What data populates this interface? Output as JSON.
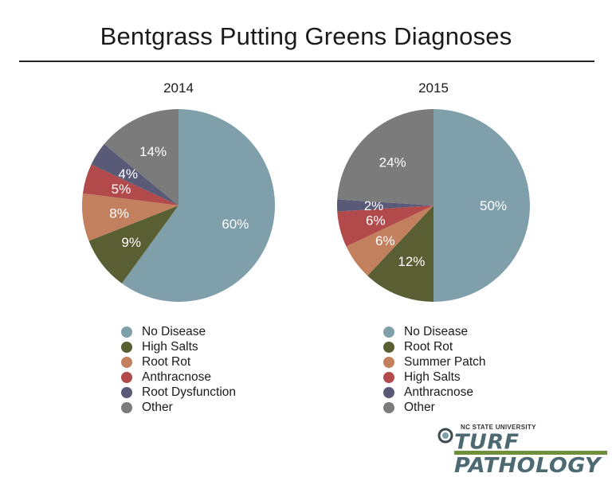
{
  "title": "Bentgrass Putting Greens Diagnoses",
  "logo": {
    "top_text": "NC STATE UNIVERSITY",
    "main_text": "TURF PATHOLOGY"
  },
  "chart_data": [
    {
      "type": "pie",
      "title": "2014",
      "legend_placement": "bottom",
      "slices": [
        {
          "label": "No Disease",
          "value": 60,
          "display": "60%",
          "color": "#7f9fab"
        },
        {
          "label": "High Salts",
          "value": 9,
          "display": "9%",
          "color": "#5a5e33"
        },
        {
          "label": "Root Rot",
          "value": 8,
          "display": "8%",
          "color": "#c3805e"
        },
        {
          "label": "Anthracnose",
          "value": 5,
          "display": "5%",
          "color": "#b24a4c"
        },
        {
          "label": "Root Dysfunction",
          "value": 4,
          "display": "4%",
          "color": "#585a78"
        },
        {
          "label": "Other",
          "value": 14,
          "display": "14%",
          "color": "#7b7b7b"
        }
      ]
    },
    {
      "type": "pie",
      "title": "2015",
      "legend_placement": "bottom",
      "slices": [
        {
          "label": "No Disease",
          "value": 50,
          "display": "50%",
          "color": "#7f9fab"
        },
        {
          "label": "Root Rot",
          "value": 12,
          "display": "12%",
          "color": "#5a5e33"
        },
        {
          "label": "Summer Patch",
          "value": 6,
          "display": "6%",
          "color": "#c3805e"
        },
        {
          "label": "High Salts",
          "value": 6,
          "display": "6%",
          "color": "#b24a4c"
        },
        {
          "label": "Anthracnose",
          "value": 2,
          "display": "2%",
          "color": "#585a78"
        },
        {
          "label": "Other",
          "value": 24,
          "display": "24%",
          "color": "#7b7b7b"
        }
      ]
    }
  ]
}
